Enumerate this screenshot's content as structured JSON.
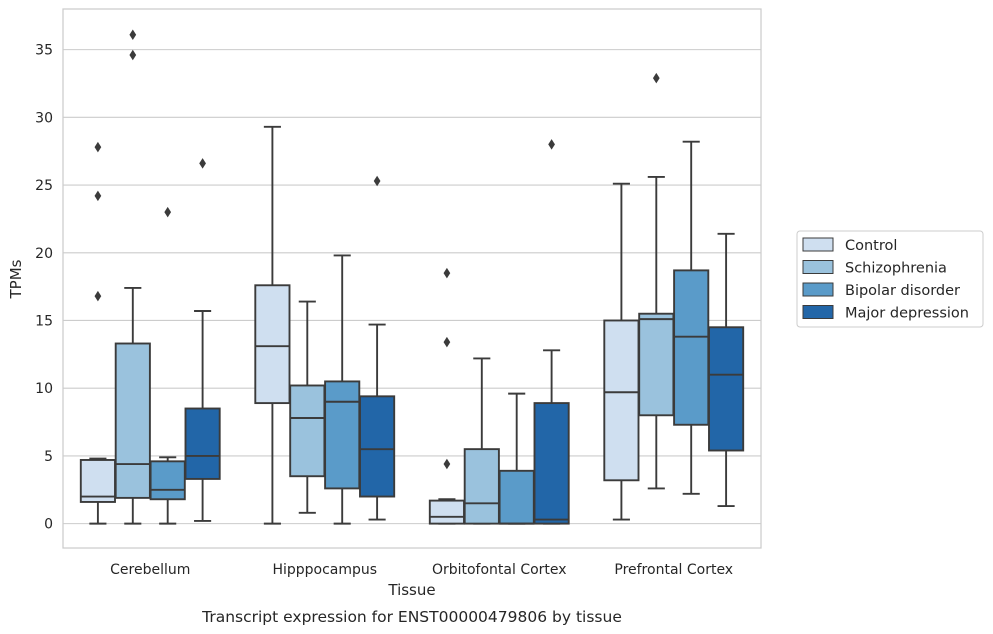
{
  "chart_data": {
    "type": "box",
    "caption": "Transcript expression for ENST00000479806 by tissue",
    "xlabel": "Tissue",
    "ylabel": "TPMs",
    "ylim": [
      -1.8,
      38
    ],
    "yticks": [
      0,
      5,
      10,
      15,
      20,
      25,
      30,
      35
    ],
    "grid": "horizontal",
    "legend_position": "right",
    "categories": [
      "Cerebellum",
      "Hipppocampus",
      "Orbitofontal Cortex",
      "Prefrontal Cortex"
    ],
    "series": [
      {
        "name": "Control",
        "color": "#cfdff0",
        "boxes": [
          {
            "whislo": 0.0,
            "q1": 1.6,
            "med": 2.0,
            "q3": 4.7,
            "whishi": 4.8,
            "fliers": [
              16.8,
              24.2,
              27.8
            ]
          },
          {
            "whislo": 0.0,
            "q1": 8.9,
            "med": 13.1,
            "q3": 17.6,
            "whishi": 29.3,
            "fliers": []
          },
          {
            "whislo": 0.0,
            "q1": 0.0,
            "med": 0.5,
            "q3": 1.7,
            "whishi": 1.8,
            "fliers": [
              4.4,
              13.4,
              18.5
            ]
          },
          {
            "whislo": 0.3,
            "q1": 3.2,
            "med": 9.7,
            "q3": 15.0,
            "whishi": 25.1,
            "fliers": []
          }
        ]
      },
      {
        "name": "Schizophrenia",
        "color": "#9ac2dd",
        "boxes": [
          {
            "whislo": 0.0,
            "q1": 1.9,
            "med": 4.4,
            "q3": 13.3,
            "whishi": 17.4,
            "fliers": [
              34.6,
              36.1
            ]
          },
          {
            "whislo": 0.8,
            "q1": 3.5,
            "med": 7.8,
            "q3": 10.2,
            "whishi": 16.4,
            "fliers": []
          },
          {
            "whislo": 0.0,
            "q1": 0.0,
            "med": 1.5,
            "q3": 5.5,
            "whishi": 12.2,
            "fliers": []
          },
          {
            "whislo": 2.6,
            "q1": 8.0,
            "med": 15.1,
            "q3": 15.5,
            "whishi": 25.6,
            "fliers": [
              32.9
            ]
          }
        ]
      },
      {
        "name": "Bipolar disorder",
        "color": "#5a9bc9",
        "boxes": [
          {
            "whislo": 0.0,
            "q1": 1.8,
            "med": 2.5,
            "q3": 4.6,
            "whishi": 4.9,
            "fliers": [
              23.0
            ]
          },
          {
            "whislo": 0.0,
            "q1": 2.6,
            "med": 9.0,
            "q3": 10.5,
            "whishi": 19.8,
            "fliers": []
          },
          {
            "whislo": 0.0,
            "q1": 0.0,
            "med": 0.0,
            "q3": 3.9,
            "whishi": 9.6,
            "fliers": []
          },
          {
            "whislo": 2.2,
            "q1": 7.3,
            "med": 13.8,
            "q3": 18.7,
            "whishi": 28.2,
            "fliers": []
          }
        ]
      },
      {
        "name": "Major depression",
        "color": "#2266a8",
        "boxes": [
          {
            "whislo": 0.2,
            "q1": 3.3,
            "med": 5.0,
            "q3": 8.5,
            "whishi": 15.7,
            "fliers": [
              26.6
            ]
          },
          {
            "whislo": 0.3,
            "q1": 2.0,
            "med": 5.5,
            "q3": 9.4,
            "whishi": 14.7,
            "fliers": [
              25.3
            ]
          },
          {
            "whislo": 0.0,
            "q1": 0.0,
            "med": 0.3,
            "q3": 8.9,
            "whishi": 12.8,
            "fliers": [
              28.0
            ]
          },
          {
            "whislo": 1.3,
            "q1": 5.4,
            "med": 11.0,
            "q3": 14.5,
            "whishi": 21.4,
            "fliers": []
          }
        ]
      }
    ]
  }
}
